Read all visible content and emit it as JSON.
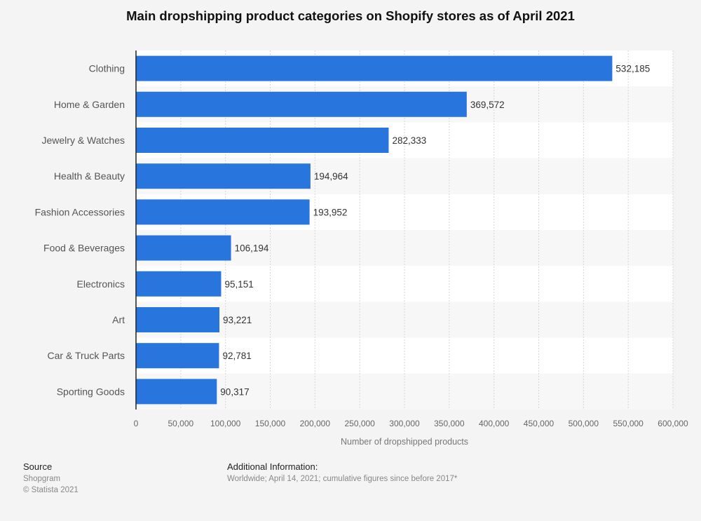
{
  "chart_data": {
    "type": "bar",
    "orientation": "horizontal",
    "title": "Main dropshipping product categories on Shopify stores as of April 2021",
    "categories": [
      "Clothing",
      "Home & Garden",
      "Jewelry & Watches",
      "Health & Beauty",
      "Fashion Accessories",
      "Food & Beverages",
      "Electronics",
      "Art",
      "Car & Truck Parts",
      "Sporting Goods"
    ],
    "values": [
      532185,
      369572,
      282333,
      194964,
      193952,
      106194,
      95151,
      93221,
      92781,
      90317
    ],
    "value_labels": [
      "532,185",
      "369,572",
      "282,333",
      "194,964",
      "193,952",
      "106,194",
      "95,151",
      "93,221",
      "92,781",
      "90,317"
    ],
    "xlabel": "Number of dropshipped products",
    "ylabel": "",
    "xlim": [
      0,
      600000
    ],
    "ticks": [
      0,
      50000,
      100000,
      150000,
      200000,
      250000,
      300000,
      350000,
      400000,
      450000,
      500000,
      550000,
      600000
    ],
    "tick_labels": [
      "0",
      "50,000",
      "100,000",
      "150,000",
      "200,000",
      "250,000",
      "300,000",
      "350,000",
      "400,000",
      "450,000",
      "500,000",
      "550,000",
      "600,000"
    ],
    "grid": true,
    "bar_color": "#2876dd"
  },
  "footer": {
    "source_heading": "Source",
    "source": "Shopgram",
    "copyright": "© Statista 2021",
    "info_heading": "Additional Information:",
    "info": "Worldwide; April 14, 2021; cumulative figures since before 2017*"
  }
}
